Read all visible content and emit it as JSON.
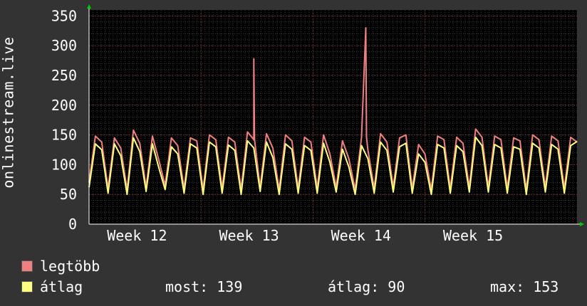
{
  "chart_data": {
    "type": "line",
    "ylabel": "onlinestream.live",
    "ylim": [
      0,
      360
    ],
    "yticks": [
      0,
      50,
      100,
      150,
      200,
      250,
      300,
      350
    ],
    "xticks": [
      "Week 12",
      "Week 13",
      "Week 14",
      "Week 15"
    ],
    "grid": true,
    "days": 30.5,
    "series": [
      {
        "name": "legtöbb",
        "color": "#f08080",
        "values": [
          70,
          148,
          138,
          60,
          145,
          128,
          58,
          158,
          136,
          62,
          148,
          108,
          65,
          145,
          132,
          60,
          145,
          140,
          58,
          150,
          142,
          60,
          146,
          138,
          58,
          155,
          142,
          62,
          152,
          128,
          58,
          150,
          140,
          60,
          146,
          138,
          60,
          150,
          118,
          62,
          140,
          110,
          58,
          146,
          125,
          60,
          152,
          138,
          62,
          145,
          150,
          60,
          134,
          118,
          58,
          148,
          142,
          60,
          146,
          136,
          62,
          160,
          146,
          62,
          148,
          142,
          60,
          145,
          140,
          58,
          150,
          142,
          62,
          148,
          140,
          60,
          146,
          138
        ]
      },
      {
        "name": "átlag",
        "color": "#ffff80",
        "values": [
          62,
          135,
          125,
          52,
          135,
          115,
          50,
          145,
          122,
          55,
          135,
          95,
          58,
          130,
          118,
          52,
          135,
          128,
          50,
          138,
          130,
          52,
          133,
          124,
          50,
          140,
          128,
          55,
          138,
          112,
          50,
          135,
          126,
          52,
          132,
          124,
          52,
          136,
          104,
          54,
          126,
          96,
          50,
          132,
          110,
          52,
          138,
          124,
          54,
          130,
          136,
          52,
          118,
          104,
          50,
          134,
          128,
          52,
          132,
          122,
          54,
          146,
          132,
          54,
          134,
          128,
          52,
          130,
          126,
          50,
          136,
          128,
          54,
          134,
          126,
          52,
          132,
          139
        ]
      }
    ],
    "spikes": [
      {
        "series": "legtöbb",
        "day": 10.3,
        "value": 278
      },
      {
        "series": "legtöbb",
        "day": 17.3,
        "value": 330
      }
    ],
    "gaps": [
      {
        "series": "legtöbb",
        "from_day": 20.0,
        "to_day": 20.2
      },
      {
        "series": "legtöbb",
        "from_day": 22.2,
        "to_day": 22.4
      }
    ],
    "week_marks_day": [
      1.0,
      8.0,
      15.0,
      22.0
    ],
    "stats": {
      "most_label": "most:",
      "most": "139",
      "atlag_label": "átlag:",
      "atlag": "90",
      "max_label": "max:",
      "max": "153"
    }
  }
}
